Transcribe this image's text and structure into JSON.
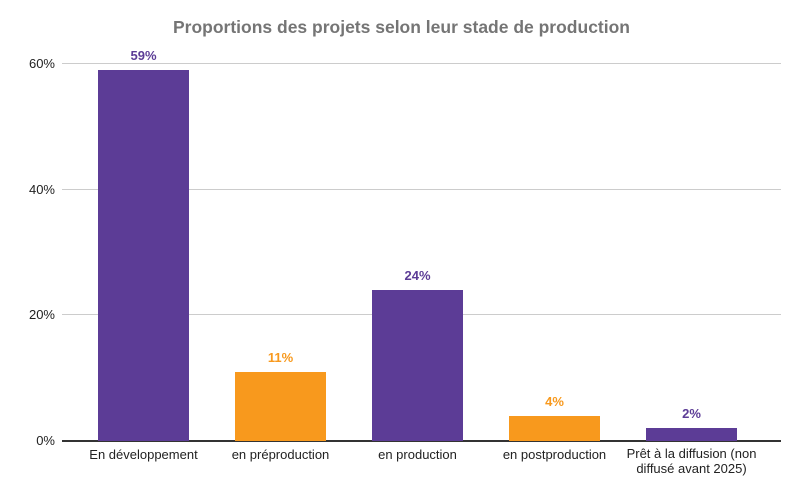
{
  "chart_data": {
    "type": "bar",
    "title": "Proportions des projets selon leur stade de production",
    "categories": [
      "En développement",
      "en préproduction",
      "en production",
      "en postproduction",
      "Prêt à la diffusion (non diffusé avant 2025)"
    ],
    "values": [
      59,
      11,
      24,
      4,
      2
    ],
    "value_labels": [
      "59%",
      "11%",
      "24%",
      "4%",
      "2%"
    ],
    "bar_colors": [
      "#5C3C96",
      "#F8991D",
      "#5C3C96",
      "#F8991D",
      "#5C3C96"
    ],
    "xlabel": "",
    "ylabel": "",
    "y_ticks": [
      {
        "value": 0,
        "label": "0%"
      },
      {
        "value": 20,
        "label": "20%"
      },
      {
        "value": 40,
        "label": "40%"
      },
      {
        "value": 60,
        "label": "60%"
      }
    ],
    "ylim": [
      0,
      63
    ],
    "grid": true,
    "legend": "none",
    "colors": {
      "title_text": "#757575",
      "axis_text": "#222222",
      "gridline": "#cccccc",
      "baseline": "#333333",
      "purple": "#5C3C96",
      "orange": "#F8991D"
    }
  }
}
